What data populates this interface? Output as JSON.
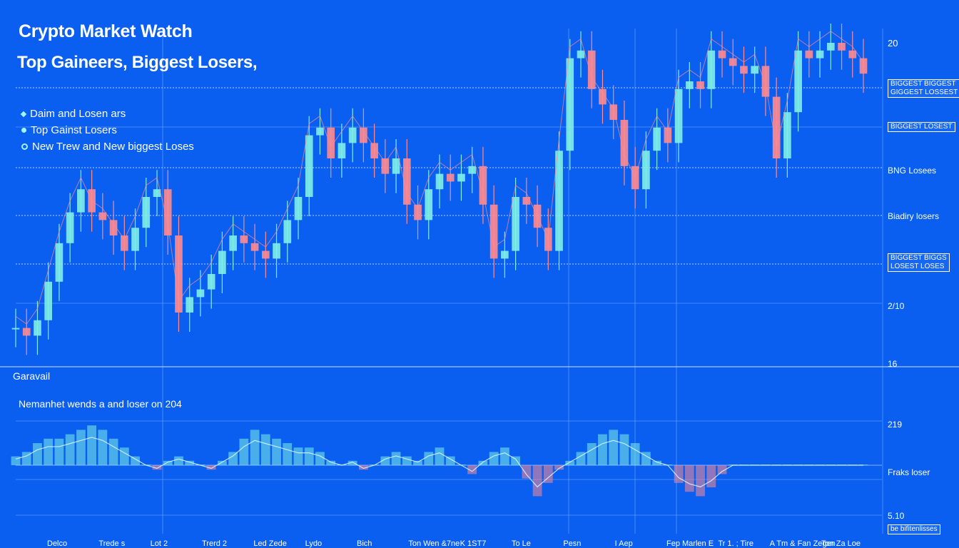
{
  "header": {
    "title": "Crypto Market Watch",
    "subtitle": "Top Gaineers,  Biggest Losers,"
  },
  "legend": [
    {
      "label": "Daim and Losen ars",
      "marker": "diamond"
    },
    {
      "label": "Top  Gainst Losers",
      "marker": "dot"
    },
    {
      "label": "New  Trew and New biggest Loses",
      "marker": "ring"
    }
  ],
  "sections": {
    "upper_caption": "Garavail",
    "lower_title": "Nemanhet wends a and loser on 204"
  },
  "right_labels": [
    {
      "text": "20"
    },
    {
      "text": "BIGGEST BIGGEST\nGIGGEST LOSSEST",
      "boxed": true
    },
    {
      "text": "BIGGEST LOSEST",
      "boxed": true
    },
    {
      "text": "BNG Losees"
    },
    {
      "text": "Biadiry losers"
    },
    {
      "text": "BIGGEST BIGGS\nLOSEST LOSES",
      "boxed": true
    },
    {
      "text": "2/10"
    },
    {
      "text": "16"
    },
    {
      "text": "219"
    },
    {
      "text": "Fraks loser"
    },
    {
      "text": "5.10"
    },
    {
      "text": "be bifitenlisses",
      "boxed": true
    }
  ],
  "x_labels": [
    "Delco",
    "Trede s",
    "Lot 2",
    "Trerd 2",
    "Led Zede",
    "Lydo",
    "Bich",
    "Ton  Wen  &7ne",
    "K 1ST7",
    "To Le",
    "Pesn",
    "I Aep",
    "Fep  Marlen E",
    "Tr 1. ; Tire",
    "A Tm  & Fan  Zegen",
    "Ton  Za Loe"
  ],
  "colors": {
    "background": "#0b5ff0",
    "gain": "#7ef0e6",
    "loss": "#ff8a8f",
    "grid": "#8fc4ff",
    "text": "#ffffff"
  },
  "chart_data": [
    {
      "type": "candlestick",
      "title": "",
      "ylabel": "",
      "ylim": [
        16,
        20
      ],
      "series": [
        {
          "name": "Top Gainers / Biggest Losers",
          "values": [
            16.3,
            16.2,
            16.4,
            16.9,
            17.4,
            17.8,
            18.1,
            17.8,
            17.7,
            17.5,
            17.3,
            17.6,
            18.0,
            18.1,
            17.5,
            16.5,
            16.7,
            16.8,
            17.0,
            17.3,
            17.5,
            17.4,
            17.3,
            17.2,
            17.4,
            17.7,
            18.0,
            18.8,
            18.9,
            18.5,
            18.7,
            18.9,
            18.7,
            18.5,
            18.3,
            18.5,
            17.9,
            17.7,
            18.1,
            18.3,
            18.2,
            18.3,
            18.4,
            17.9,
            17.2,
            17.3,
            18.0,
            17.9,
            17.6,
            17.3,
            18.6,
            19.8,
            19.9,
            19.4,
            19.2,
            19.0,
            18.4,
            18.1,
            18.6,
            18.9,
            18.7,
            19.4,
            19.5,
            19.4,
            19.9,
            19.8,
            19.7,
            19.6,
            19.7,
            19.3,
            18.5,
            19.1,
            19.9,
            19.8,
            19.9,
            20.0,
            19.9,
            19.8,
            19.6
          ]
        }
      ]
    },
    {
      "type": "bar",
      "title": "Nemanhet wends a and loser on 204",
      "ylabel": "",
      "series": [
        {
          "name": "Daily change",
          "values": [
            0.2,
            0.3,
            0.5,
            0.6,
            0.6,
            0.7,
            0.8,
            0.9,
            0.8,
            0.6,
            0.4,
            0.2,
            0.0,
            -0.1,
            0.1,
            0.2,
            0.1,
            0.0,
            -0.1,
            0.1,
            0.3,
            0.6,
            0.8,
            0.7,
            0.6,
            0.5,
            0.4,
            0.4,
            0.3,
            0.1,
            0.0,
            0.1,
            -0.1,
            0.0,
            0.2,
            0.3,
            0.2,
            0.1,
            0.3,
            0.4,
            0.2,
            0.0,
            -0.2,
            0.1,
            0.3,
            0.4,
            0.2,
            -0.3,
            -0.7,
            -0.4,
            -0.1,
            0.1,
            0.3,
            0.5,
            0.7,
            0.8,
            0.7,
            0.5,
            0.3,
            0.1,
            0.0,
            -0.4,
            -0.6,
            -0.7,
            -0.5,
            -0.2,
            0.0,
            0.0,
            0.0,
            0.0,
            0.0,
            0.0,
            0.0,
            0.0,
            0.0,
            0.0,
            0.0,
            0.0,
            0.0
          ]
        }
      ]
    }
  ]
}
